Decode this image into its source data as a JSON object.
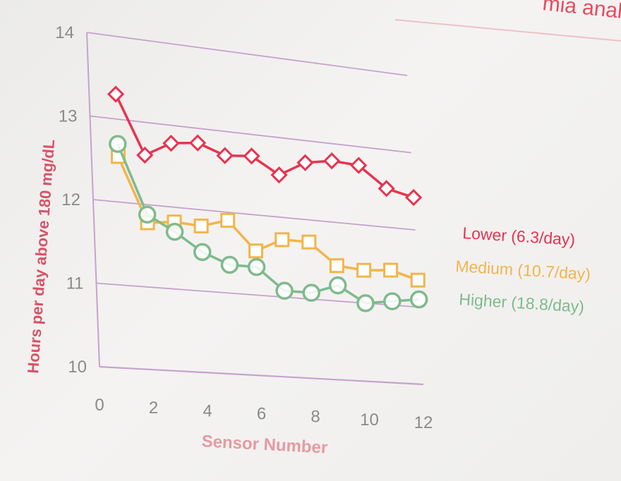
{
  "slide": {
    "title_fragment": "mia analyse"
  },
  "chart_data": {
    "type": "line",
    "xlabel": "Sensor Number",
    "ylabel": "Hours per day above 180 mg/dL",
    "xlim": [
      0,
      12
    ],
    "ylim": [
      10,
      14
    ],
    "x_ticks": [
      "0",
      "2",
      "4",
      "6",
      "8",
      "10",
      "12"
    ],
    "y_ticks": [
      "10",
      "11",
      "12",
      "13",
      "14"
    ],
    "grid": "horizontal",
    "legend_position": "right",
    "x": [
      1,
      2,
      3,
      4,
      5,
      6,
      7,
      8,
      9,
      10,
      11,
      12
    ],
    "series": [
      {
        "name": "Lower (6.3/day)",
        "marker": "diamond",
        "color": "#e8334f",
        "values": [
          13.3,
          12.6,
          12.78,
          12.82,
          12.7,
          12.73,
          12.53,
          12.72,
          12.78,
          12.76,
          12.5,
          12.42
        ]
      },
      {
        "name": "Medium (10.7/day)",
        "marker": "square",
        "color": "#f2b54a",
        "values": [
          12.55,
          11.78,
          11.82,
          11.8,
          11.9,
          11.55,
          11.72,
          11.72,
          11.45,
          11.42,
          11.45,
          11.35
        ]
      },
      {
        "name": "Higher (18.8/day)",
        "marker": "circle",
        "color": "#7fba8c",
        "values": [
          12.7,
          11.88,
          11.7,
          11.48,
          11.35,
          11.35,
          11.08,
          11.08,
          11.2,
          11.0,
          11.05,
          11.1
        ]
      }
    ]
  }
}
